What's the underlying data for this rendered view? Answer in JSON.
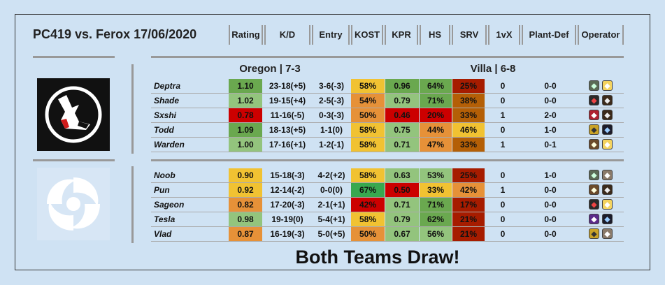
{
  "header": {
    "title": "PC419 vs. Ferox 17/06/2020",
    "columns": [
      "Rating",
      "K/D",
      "Entry",
      "KOST",
      "KPR",
      "HS",
      "SRV",
      "1vX",
      "Plant-Def",
      "Operator"
    ]
  },
  "scoreline": {
    "left": "Oregon | 7-3",
    "right": "Villa | 6-8"
  },
  "teams": [
    {
      "name": "PC419",
      "players": [
        {
          "name": "Deptra",
          "rating": "1.10",
          "kd": "23-18(+5)",
          "entry": "3-6(-3)",
          "kost": "58%",
          "kpr": "0.96",
          "hs": "64%",
          "srv": "25%",
          "vx": "0",
          "pd": "0-0",
          "ops": [
            "op-a",
            "op-b"
          ]
        },
        {
          "name": "Shade",
          "rating": "1.02",
          "kd": "19-15(+4)",
          "entry": "2-5(-3)",
          "kost": "54%",
          "kpr": "0.79",
          "hs": "71%",
          "srv": "38%",
          "vx": "0",
          "pd": "0-0",
          "ops": [
            "op-c",
            "op-d"
          ]
        },
        {
          "name": "Sxshi",
          "rating": "0.78",
          "kd": "11-16(-5)",
          "entry": "0-3(-3)",
          "kost": "50%",
          "kpr": "0.46",
          "hs": "20%",
          "srv": "33%",
          "vx": "1",
          "pd": "2-0",
          "ops": [
            "op-e",
            "op-d"
          ]
        },
        {
          "name": "Todd",
          "rating": "1.09",
          "kd": "18-13(+5)",
          "entry": "1-1(0)",
          "kost": "58%",
          "kpr": "0.75",
          "hs": "44%",
          "srv": "46%",
          "vx": "0",
          "pd": "1-0",
          "ops": [
            "op-f",
            "op-g"
          ]
        },
        {
          "name": "Warden",
          "rating": "1.00",
          "kd": "17-16(+1)",
          "entry": "1-2(-1)",
          "kost": "58%",
          "kpr": "0.71",
          "hs": "47%",
          "srv": "33%",
          "vx": "1",
          "pd": "0-1",
          "ops": [
            "op-h",
            "op-b"
          ]
        }
      ]
    },
    {
      "name": "Ferox",
      "players": [
        {
          "name": "Noob",
          "rating": "0.90",
          "kd": "15-18(-3)",
          "entry": "4-2(+2)",
          "kost": "58%",
          "kpr": "0.63",
          "hs": "53%",
          "srv": "25%",
          "vx": "0",
          "pd": "1-0",
          "ops": [
            "op-a",
            "op-i"
          ]
        },
        {
          "name": "Pun",
          "rating": "0.92",
          "kd": "12-14(-2)",
          "entry": "0-0(0)",
          "kost": "67%",
          "kpr": "0.50",
          "hs": "33%",
          "srv": "42%",
          "vx": "1",
          "pd": "0-0",
          "ops": [
            "op-h",
            "op-d"
          ]
        },
        {
          "name": "Sageon",
          "rating": "0.82",
          "kd": "17-20(-3)",
          "entry": "2-1(+1)",
          "kost": "42%",
          "kpr": "0.71",
          "hs": "71%",
          "srv": "17%",
          "vx": "0",
          "pd": "0-0",
          "ops": [
            "op-c",
            "op-b"
          ]
        },
        {
          "name": "Tesla",
          "rating": "0.98",
          "kd": "19-19(0)",
          "entry": "5-4(+1)",
          "kost": "58%",
          "kpr": "0.79",
          "hs": "62%",
          "srv": "21%",
          "vx": "0",
          "pd": "0-0",
          "ops": [
            "op-j",
            "op-g"
          ]
        },
        {
          "name": "Vlad",
          "rating": "0.87",
          "kd": "16-19(-3)",
          "entry": "5-0(+5)",
          "kost": "50%",
          "kpr": "0.67",
          "hs": "56%",
          "srv": "21%",
          "vx": "0",
          "pd": "0-0",
          "ops": [
            "op-f",
            "op-i"
          ]
        }
      ]
    }
  ],
  "verdict": "Both Teams Draw!",
  "colors": {
    "dark_red": "#a61c00",
    "red": "#cc0000",
    "orange": "#e69138",
    "yellow": "#f1c232",
    "light_green": "#93c47d",
    "green": "#6aa84f",
    "bright_green": "#38a84f",
    "brown": "#b45f06"
  },
  "cell_colors": [
    [
      [
        "#6aa84f"
      ],
      [
        "#f1c232"
      ],
      [
        "#6aa84f"
      ],
      [
        "#6aa84f"
      ],
      [
        "#a61c00"
      ]
    ],
    [
      [
        "#93c47d"
      ],
      [
        "#e69138"
      ],
      [
        "#93c47d"
      ],
      [
        "#6aa84f"
      ],
      [
        "#b45f06"
      ]
    ],
    [
      [
        "#cc0000"
      ],
      [
        "#e69138"
      ],
      [
        "#cc0000"
      ],
      [
        "#cc0000"
      ],
      [
        "#b45f06"
      ]
    ],
    [
      [
        "#6aa84f"
      ],
      [
        "#f1c232"
      ],
      [
        "#93c47d"
      ],
      [
        "#e69138"
      ],
      [
        "#f1c232"
      ]
    ],
    [
      [
        "#93c47d"
      ],
      [
        "#f1c232"
      ],
      [
        "#93c47d"
      ],
      [
        "#e69138"
      ],
      [
        "#b45f06"
      ]
    ],
    [
      [
        "#f1c232"
      ],
      [
        "#f1c232"
      ],
      [
        "#93c47d"
      ],
      [
        "#93c47d"
      ],
      [
        "#a61c00"
      ]
    ],
    [
      [
        "#f1c232"
      ],
      [
        "#38a84f"
      ],
      [
        "#cc0000"
      ],
      [
        "#f1c232"
      ],
      [
        "#e69138"
      ]
    ],
    [
      [
        "#e69138"
      ],
      [
        "#cc0000"
      ],
      [
        "#93c47d"
      ],
      [
        "#6aa84f"
      ],
      [
        "#a61c00"
      ]
    ],
    [
      [
        "#93c47d"
      ],
      [
        "#f1c232"
      ],
      [
        "#93c47d"
      ],
      [
        "#6aa84f"
      ],
      [
        "#a61c00"
      ]
    ],
    [
      [
        "#e69138"
      ],
      [
        "#e69138"
      ],
      [
        "#93c47d"
      ],
      [
        "#93c47d"
      ],
      [
        "#a61c00"
      ]
    ]
  ]
}
